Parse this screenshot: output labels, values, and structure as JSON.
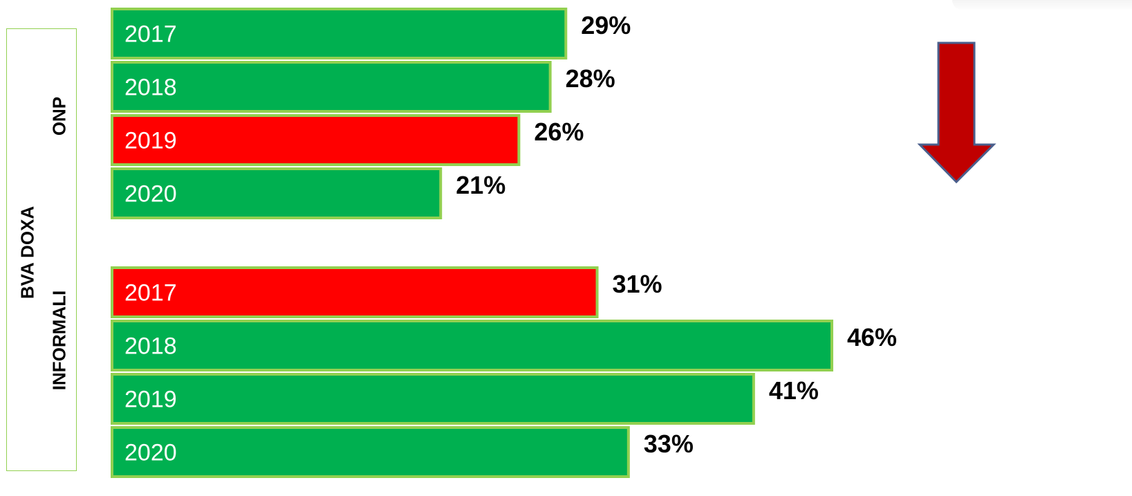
{
  "labels": {
    "outer": "BVA DOXA",
    "group_onp": "ONP",
    "group_informali": "INFORMALI"
  },
  "colors": {
    "green": "#00b050",
    "red": "#ff0000",
    "bar_border": "#92d050",
    "arrow_fill": "#c00000",
    "arrow_stroke": "#4a5f8c"
  },
  "icons": {
    "trend_arrow": "down-arrow-icon"
  },
  "chart_data": [
    {
      "type": "bar",
      "orientation": "horizontal",
      "group": "ONP",
      "categories": [
        "2017",
        "2018",
        "2019",
        "2020"
      ],
      "values": [
        29,
        28,
        26,
        21
      ],
      "value_labels": [
        "29%",
        "28%",
        "26%",
        "21%"
      ],
      "highlight": [
        false,
        false,
        true,
        false
      ],
      "unit": "%"
    },
    {
      "type": "bar",
      "orientation": "horizontal",
      "group": "INFORMALI",
      "categories": [
        "2017",
        "2018",
        "2019",
        "2020"
      ],
      "values": [
        31,
        46,
        41,
        33
      ],
      "value_labels": [
        "31%",
        "46%",
        "41%",
        "33%"
      ],
      "highlight": [
        true,
        false,
        false,
        false
      ],
      "unit": "%"
    }
  ]
}
